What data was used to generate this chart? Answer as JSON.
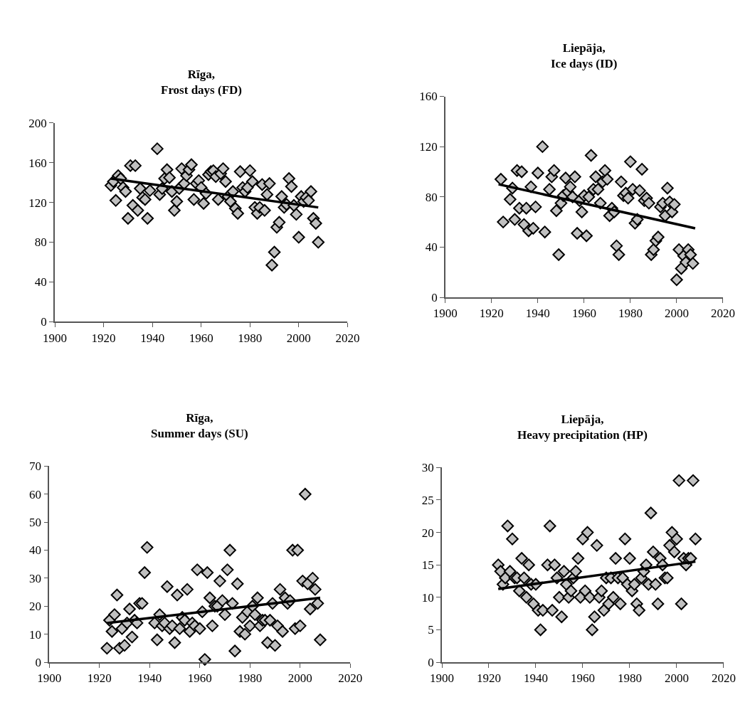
{
  "chart_data": [
    {
      "type": "scatter",
      "title": "Rīga,\nFrost days (FD)",
      "xlim": [
        1900,
        2020
      ],
      "xticks": [
        1900,
        1920,
        1940,
        1960,
        1980,
        2000,
        2020
      ],
      "ylim": [
        0,
        200
      ],
      "yticks": [
        0,
        40,
        80,
        120,
        160,
        200
      ],
      "grid": false,
      "marker": "diamond",
      "series": [
        {
          "color": "#c0c0c0",
          "x": [
            1923,
            1924,
            1926,
            1927,
            1925,
            1928,
            1929,
            1930,
            1931,
            1933,
            1932,
            1934,
            1935,
            1936,
            1937,
            1938,
            1939,
            1942,
            1943,
            1944,
            1945,
            1946,
            1947,
            1948,
            1949,
            1950,
            1951,
            1952,
            1953,
            1954,
            1955,
            1956,
            1957,
            1958,
            1959,
            1960,
            1961,
            1962,
            1963,
            1964,
            1965,
            1966,
            1967,
            1968,
            1969,
            1970,
            1971,
            1972,
            1973,
            1974,
            1975,
            1976,
            1977,
            1978,
            1979,
            1980,
            1981,
            1982,
            1983,
            1984,
            1985,
            1986,
            1987,
            1988,
            1989,
            1990,
            1991,
            1992,
            1993,
            1994,
            1995,
            1996,
            1997,
            1998,
            1999,
            2000,
            2001,
            2002,
            2003,
            2004,
            2005,
            2006,
            2007,
            2008
          ],
          "values": [
            137,
            141,
            147,
            144,
            122,
            135,
            131,
            104,
            157,
            157,
            117,
            112,
            134,
            125,
            123,
            104,
            132,
            174,
            128,
            134,
            144,
            153,
            145,
            131,
            112,
            121,
            134,
            154,
            139,
            147,
            153,
            158,
            123,
            139,
            142,
            135,
            119,
            129,
            148,
            151,
            152,
            146,
            123,
            149,
            154,
            141,
            126,
            121,
            131,
            114,
            109,
            151,
            135,
            131,
            135,
            152,
            141,
            115,
            109,
            115,
            138,
            112,
            128,
            139,
            57,
            70,
            95,
            100,
            126,
            115,
            118,
            144,
            136,
            117,
            108,
            85,
            126,
            121,
            125,
            122,
            131,
            104,
            99,
            80
          ]
        },
        {
          "type": "line",
          "color": "#000000",
          "marker": "none",
          "x": [
            1923,
            2008
          ],
          "values": [
            144,
            115
          ]
        }
      ]
    },
    {
      "type": "scatter",
      "title": "Liepāja,\nIce days (ID)",
      "xlim": [
        1900,
        2020
      ],
      "xticks": [
        1900,
        1920,
        1940,
        1960,
        1980,
        2000,
        2020
      ],
      "ylim": [
        0,
        160
      ],
      "yticks": [
        0,
        40,
        80,
        120,
        160
      ],
      "grid": false,
      "marker": "diamond",
      "series": [
        {
          "color": "#c0c0c0",
          "x": [
            1924,
            1925,
            1928,
            1929,
            1930,
            1931,
            1932,
            1933,
            1934,
            1935,
            1936,
            1937,
            1938,
            1939,
            1940,
            1942,
            1943,
            1945,
            1946,
            1947,
            1948,
            1949,
            1950,
            1951,
            1952,
            1953,
            1954,
            1955,
            1956,
            1957,
            1958,
            1959,
            1960,
            1961,
            1962,
            1963,
            1964,
            1965,
            1966,
            1967,
            1968,
            1969,
            1970,
            1971,
            1972,
            1973,
            1974,
            1975,
            1976,
            1977,
            1978,
            1979,
            1980,
            1981,
            1982,
            1983,
            1984,
            1985,
            1986,
            1987,
            1988,
            1989,
            1990,
            1991,
            1992,
            1993,
            1994,
            1995,
            1996,
            1997,
            1998,
            1999,
            2000,
            2001,
            2002,
            2003,
            2004,
            2005,
            2006,
            2007
          ],
          "values": [
            94,
            60,
            78,
            87,
            62,
            101,
            71,
            100,
            58,
            71,
            53,
            88,
            55,
            72,
            99,
            120,
            52,
            86,
            96,
            101,
            69,
            34,
            75,
            81,
            95,
            84,
            88,
            80,
            96,
            51,
            77,
            68,
            81,
            49,
            80,
            113,
            86,
            96,
            86,
            75,
            92,
            101,
            94,
            65,
            71,
            68,
            41,
            34,
            92,
            81,
            83,
            79,
            108,
            86,
            59,
            62,
            85,
            102,
            77,
            79,
            75,
            34,
            38,
            45,
            48,
            72,
            75,
            65,
            87,
            76,
            68,
            74,
            14,
            38,
            23,
            33,
            28,
            38,
            34,
            27
          ]
        },
        {
          "type": "line",
          "color": "#000000",
          "marker": "none",
          "x": [
            1923,
            2008
          ],
          "values": [
            90,
            55
          ]
        }
      ]
    },
    {
      "type": "scatter",
      "title": "Rīga,\nSummer days (SU)",
      "xlim": [
        1900,
        2020
      ],
      "xticks": [
        1900,
        1920,
        1940,
        1960,
        1980,
        2000,
        2020
      ],
      "ylim": [
        0,
        70
      ],
      "yticks": [
        0,
        10,
        20,
        30,
        40,
        50,
        60,
        70
      ],
      "grid": false,
      "marker": "diamond",
      "series": [
        {
          "color": "#c0c0c0",
          "x": [
            1923,
            1924,
            1925,
            1926,
            1927,
            1928,
            1929,
            1930,
            1931,
            1932,
            1933,
            1934,
            1935,
            1936,
            1937,
            1938,
            1939,
            1942,
            1943,
            1944,
            1945,
            1946,
            1947,
            1948,
            1949,
            1950,
            1951,
            1952,
            1953,
            1954,
            1955,
            1956,
            1957,
            1958,
            1959,
            1960,
            1961,
            1962,
            1963,
            1964,
            1965,
            1966,
            1967,
            1968,
            1969,
            1970,
            1971,
            1972,
            1973,
            1974,
            1975,
            1977,
            1976,
            1978,
            1979,
            1980,
            1981,
            1982,
            1983,
            1984,
            1985,
            1986,
            1987,
            1988,
            1989,
            1990,
            1991,
            1992,
            1993,
            1994,
            1995,
            1996,
            1997,
            1998,
            1999,
            2000,
            2001,
            2002,
            2003,
            2004,
            2005,
            2006,
            2007,
            2008
          ],
          "values": [
            5,
            15,
            11,
            17,
            24,
            5,
            12,
            6,
            14,
            19,
            9,
            15,
            14,
            21,
            21,
            32,
            41,
            14,
            8,
            17,
            13,
            14,
            27,
            12,
            13,
            7,
            24,
            12,
            16,
            15,
            26,
            11,
            14,
            13,
            33,
            12,
            18,
            1,
            32,
            23,
            13,
            20,
            20,
            29,
            22,
            17,
            33,
            40,
            21,
            4,
            28,
            16,
            11,
            10,
            18,
            13,
            20,
            17,
            23,
            13,
            15,
            15,
            7,
            15,
            21,
            6,
            13,
            26,
            11,
            23,
            21,
            22,
            40,
            12,
            40,
            13,
            29,
            60,
            28,
            19,
            30,
            26,
            21,
            8
          ]
        },
        {
          "type": "line",
          "color": "#000000",
          "marker": "none",
          "x": [
            1923,
            2008
          ],
          "values": [
            14,
            23
          ]
        }
      ]
    },
    {
      "type": "scatter",
      "title": "Liepāja,\nHeavy precipitation (HP)",
      "xlim": [
        1900,
        2020
      ],
      "xticks": [
        1900,
        1920,
        1940,
        1960,
        1980,
        2000,
        2020
      ],
      "ylim": [
        0,
        30
      ],
      "yticks": [
        0,
        5,
        10,
        15,
        20,
        25,
        30
      ],
      "grid": false,
      "marker": "diamond",
      "series": [
        {
          "color": "#c0c0c0",
          "x": [
            1924,
            1925,
            1926,
            1927,
            1928,
            1929,
            1930,
            1931,
            1932,
            1933,
            1934,
            1935,
            1936,
            1937,
            1938,
            1939,
            1940,
            1941,
            1942,
            1943,
            1945,
            1946,
            1947,
            1948,
            1949,
            1950,
            1951,
            1952,
            1953,
            1954,
            1955,
            1956,
            1957,
            1958,
            1959,
            1960,
            1961,
            1962,
            1963,
            1964,
            1965,
            1966,
            1967,
            1968,
            1969,
            1970,
            1971,
            1972,
            1973,
            1974,
            1975,
            1976,
            1977,
            1978,
            1979,
            1980,
            1981,
            1982,
            1983,
            1984,
            1985,
            1986,
            1987,
            1988,
            1989,
            1990,
            1991,
            1992,
            1993,
            1994,
            1995,
            1996,
            1997,
            1998,
            1999,
            2000,
            2001,
            2002,
            2003,
            2004,
            2005,
            2006,
            2007,
            2008
          ],
          "values": [
            15,
            14,
            12,
            13,
            21,
            14,
            19,
            13,
            13,
            11,
            16,
            13,
            10,
            15,
            12,
            9,
            12,
            8,
            5,
            8,
            15,
            21,
            8,
            15,
            13,
            10,
            7,
            14,
            12,
            10,
            11,
            13,
            14,
            16,
            10,
            19,
            11,
            20,
            10,
            5,
            7,
            18,
            10,
            11,
            8,
            13,
            9,
            13,
            10,
            16,
            13,
            9,
            13,
            19,
            12,
            16,
            11,
            12,
            9,
            8,
            13,
            14,
            15,
            12,
            23,
            17,
            12,
            9,
            16,
            15,
            13,
            13,
            18,
            20,
            17,
            19,
            28,
            9,
            16,
            15,
            16,
            16,
            28,
            19
          ]
        },
        {
          "type": "line",
          "color": "#000000",
          "marker": "none",
          "x": [
            1924,
            2008
          ],
          "values": [
            11.3,
            15.5
          ]
        }
      ]
    }
  ]
}
